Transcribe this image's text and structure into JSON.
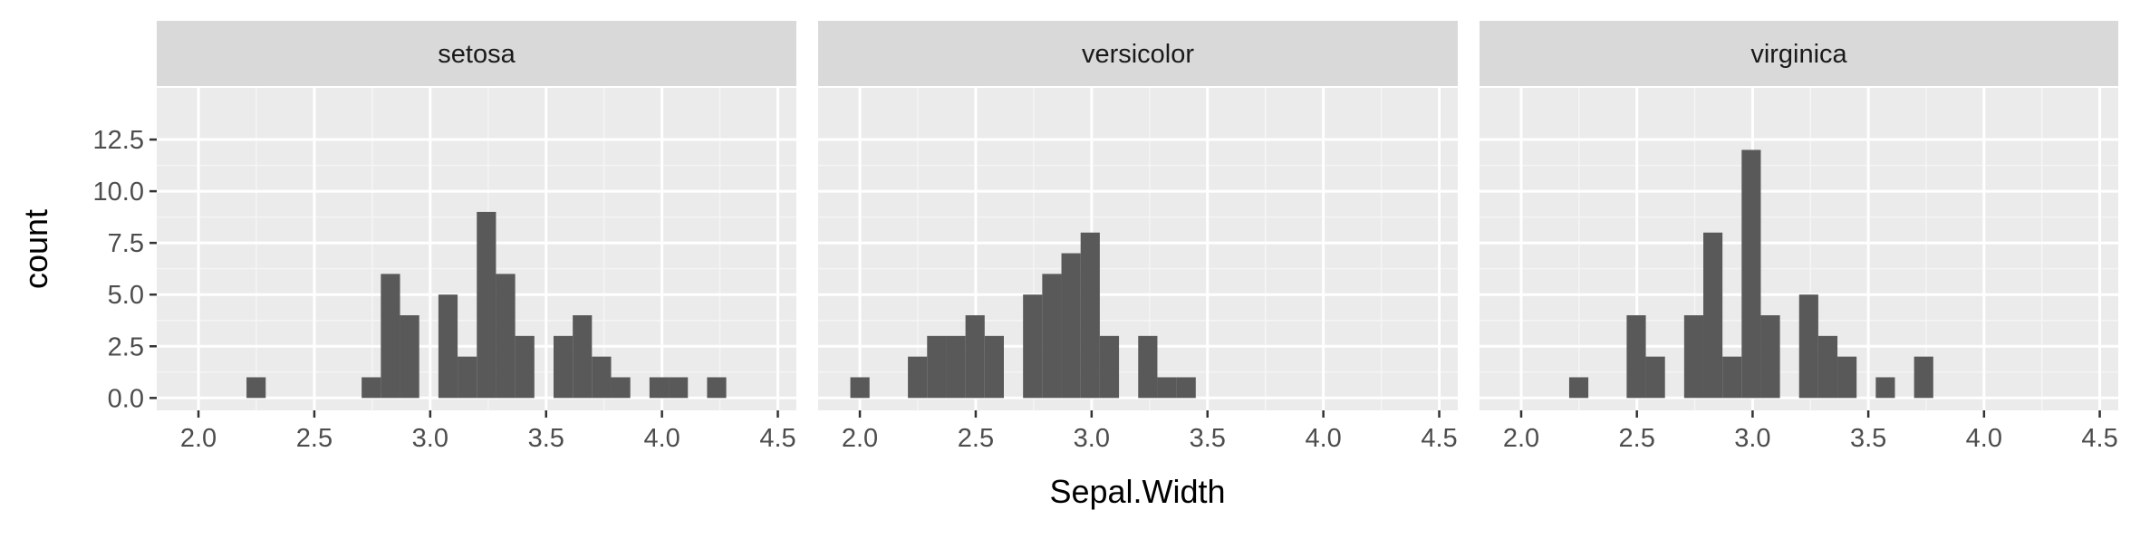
{
  "chart_data": {
    "type": "bar",
    "subtype": "faceted-histogram",
    "xlabel": "Sepal.Width",
    "ylabel": "count",
    "xlim": [
      1.82,
      4.58
    ],
    "ylim": [
      -0.6,
      15.0
    ],
    "x_ticks": [
      2.0,
      2.5,
      3.0,
      3.5,
      4.0,
      4.5
    ],
    "x_tick_labels": [
      "2.0",
      "2.5",
      "3.0",
      "3.5",
      "4.0",
      "4.5"
    ],
    "y_ticks": [
      0.0,
      2.5,
      5.0,
      7.5,
      10.0,
      12.5
    ],
    "y_tick_labels": [
      "0.0",
      "2.5",
      "5.0",
      "7.5",
      "10.0",
      "12.5"
    ],
    "grid": true,
    "bin_width": 0.0828,
    "bin_start": 1.959,
    "bar_color": "#595959",
    "panel_background": "#ebebeb",
    "strip_background": "#d9d9d9",
    "facets": [
      {
        "label": "setosa",
        "counts": [
          0,
          0,
          0,
          1,
          0,
          0,
          0,
          0,
          0,
          1,
          6,
          4,
          0,
          5,
          2,
          9,
          6,
          3,
          0,
          3,
          4,
          2,
          1,
          0,
          1,
          1,
          0,
          1,
          0,
          0
        ]
      },
      {
        "label": "versicolor",
        "counts": [
          1,
          0,
          0,
          2,
          3,
          3,
          4,
          3,
          0,
          5,
          6,
          7,
          8,
          3,
          0,
          3,
          1,
          1,
          0,
          0,
          0,
          0,
          0,
          0,
          0,
          0,
          0,
          0,
          0,
          0
        ]
      },
      {
        "label": "virginica",
        "counts": [
          0,
          0,
          0,
          1,
          0,
          0,
          4,
          2,
          0,
          4,
          8,
          2,
          12,
          4,
          0,
          5,
          3,
          2,
          0,
          1,
          0,
          2,
          0,
          0,
          0,
          0,
          0,
          0,
          0,
          0
        ]
      }
    ]
  }
}
